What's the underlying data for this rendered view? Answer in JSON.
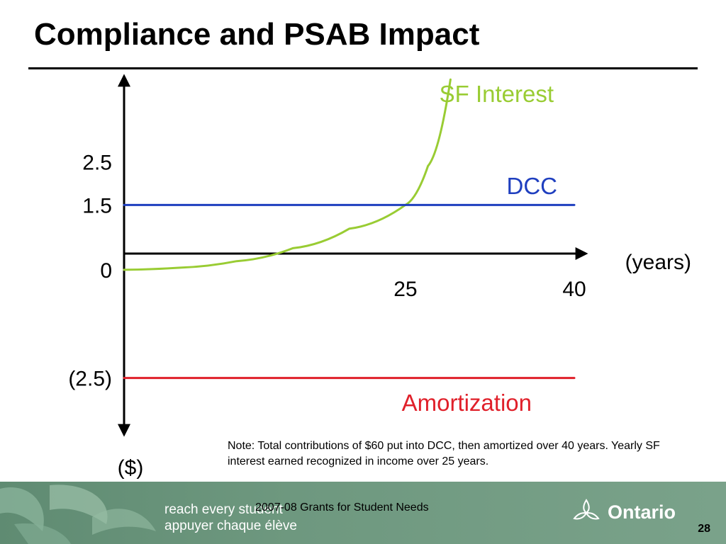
{
  "slide": {
    "title": "Compliance and PSAB Impact",
    "note": "Note: Total contributions of $60 put into DCC, then amortized over 40 years.  Yearly SF interest earned recognized in income over 25 years.",
    "footer": {
      "slogan_line1": "reach every student",
      "slogan_line2": "appuyer chaque élève",
      "center_text": "2007-08 Grants for Student Needs",
      "brand": "Ontario",
      "page_number": "28"
    }
  },
  "chart_data": {
    "type": "line",
    "xlabel": "(years)",
    "ylabel": "($)",
    "x_ticks": [
      {
        "value": 25,
        "label": "25"
      },
      {
        "value": 40,
        "label": "40"
      }
    ],
    "y_ticks": [
      {
        "value": 2.5,
        "label": "2.5"
      },
      {
        "value": 1.5,
        "label": "1.5"
      },
      {
        "value": 0,
        "label": "0"
      },
      {
        "value": -2.5,
        "label": "(2.5)"
      }
    ],
    "xlim": [
      0,
      40
    ],
    "ylim": [
      -3.8,
      4.6
    ],
    "grid": false,
    "series": [
      {
        "name": "SF Interest",
        "color": "#99cc33",
        "curve": "exponential",
        "x": [
          0,
          5,
          10,
          15,
          20,
          25,
          27,
          29
        ],
        "y": [
          0,
          0.05,
          0.2,
          0.5,
          0.95,
          1.5,
          2.4,
          4.4
        ]
      },
      {
        "name": "DCC",
        "color": "#1f3fbf",
        "x": [
          0,
          40
        ],
        "y": [
          1.5,
          1.5
        ]
      },
      {
        "name": "Amortization",
        "color": "#e0202a",
        "x": [
          0,
          40
        ],
        "y": [
          -2.5,
          -2.5
        ]
      }
    ]
  }
}
